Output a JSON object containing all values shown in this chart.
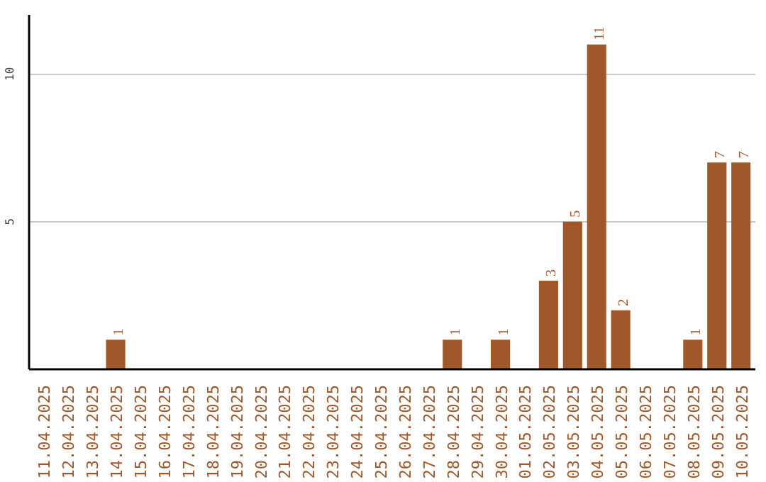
{
  "chart_data": {
    "type": "bar",
    "categories": [
      "11.04.2025",
      "12.04.2025",
      "13.04.2025",
      "14.04.2025",
      "15.04.2025",
      "16.04.2025",
      "17.04.2025",
      "18.04.2025",
      "19.04.2025",
      "20.04.2025",
      "21.04.2025",
      "22.04.2025",
      "23.04.2025",
      "24.04.2025",
      "25.04.2025",
      "26.04.2025",
      "27.04.2025",
      "28.04.2025",
      "29.04.2025",
      "30.04.2025",
      "01.05.2025",
      "02.05.2025",
      "03.05.2025",
      "04.05.2025",
      "05.05.2025",
      "06.05.2025",
      "07.05.2025",
      "08.05.2025",
      "09.05.2025",
      "10.05.2025"
    ],
    "values": [
      0,
      0,
      0,
      1,
      0,
      0,
      0,
      0,
      0,
      0,
      0,
      0,
      0,
      0,
      0,
      0,
      0,
      1,
      0,
      1,
      0,
      3,
      5,
      11,
      2,
      0,
      0,
      1,
      7,
      7
    ],
    "value_labels": [
      null,
      null,
      null,
      "1",
      null,
      null,
      null,
      null,
      null,
      null,
      null,
      null,
      null,
      null,
      null,
      null,
      null,
      "1",
      null,
      "1",
      null,
      "3",
      "5",
      "11",
      "2",
      null,
      null,
      "1",
      "7",
      "7"
    ],
    "color": "#a0582a",
    "ylim": [
      0,
      12
    ],
    "yticks": [
      5,
      10
    ],
    "grid": "y"
  }
}
